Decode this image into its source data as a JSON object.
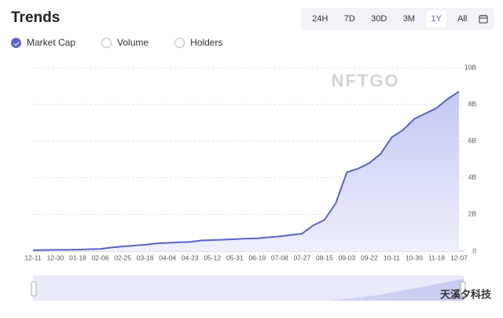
{
  "header": {
    "title": "Trends",
    "ranges": [
      "24H",
      "7D",
      "30D",
      "3M",
      "1Y",
      "All"
    ],
    "metrics": [
      "Market Cap",
      "Volume",
      "Holders"
    ]
  },
  "watermark": "NFTGO",
  "footer_watermark": "天溪夕科技",
  "chart_data": {
    "type": "area",
    "categories": [
      "12-11",
      null,
      "12-30",
      null,
      "01-18",
      null,
      "02-06",
      null,
      "02-25",
      null,
      "03-16",
      null,
      "04-04",
      null,
      "04-23",
      null,
      "05-12",
      null,
      "05-31",
      null,
      "06-19",
      null,
      "07-08",
      null,
      "07-27",
      null,
      "08-15",
      null,
      "09-03",
      null,
      "09-22",
      null,
      "10-11",
      null,
      "10-30",
      null,
      "11-18",
      null,
      "12-07"
    ],
    "series": [
      {
        "name": "Market Cap",
        "color": "#5a63c7",
        "values": [
          0.05,
          0.06,
          0.07,
          0.07,
          0.08,
          0.1,
          0.12,
          0.2,
          0.25,
          0.3,
          0.35,
          0.42,
          0.45,
          0.48,
          0.5,
          0.58,
          0.6,
          0.62,
          0.65,
          0.68,
          0.7,
          0.75,
          0.8,
          0.88,
          0.95,
          1.4,
          1.7,
          2.6,
          4.3,
          4.5,
          4.8,
          5.3,
          6.2,
          6.6,
          7.2,
          7.5,
          7.8,
          8.3,
          8.7
        ]
      }
    ],
    "ylim": [
      0,
      10
    ],
    "yticks": [
      0,
      {
        "value": 2,
        "label": "2B"
      },
      {
        "value": 4,
        "label": "4B"
      },
      {
        "value": 6,
        "label": "6B"
      },
      {
        "value": 8,
        "label": "8B"
      },
      {
        "value": 10,
        "label": "10B"
      }
    ],
    "grid": true
  }
}
